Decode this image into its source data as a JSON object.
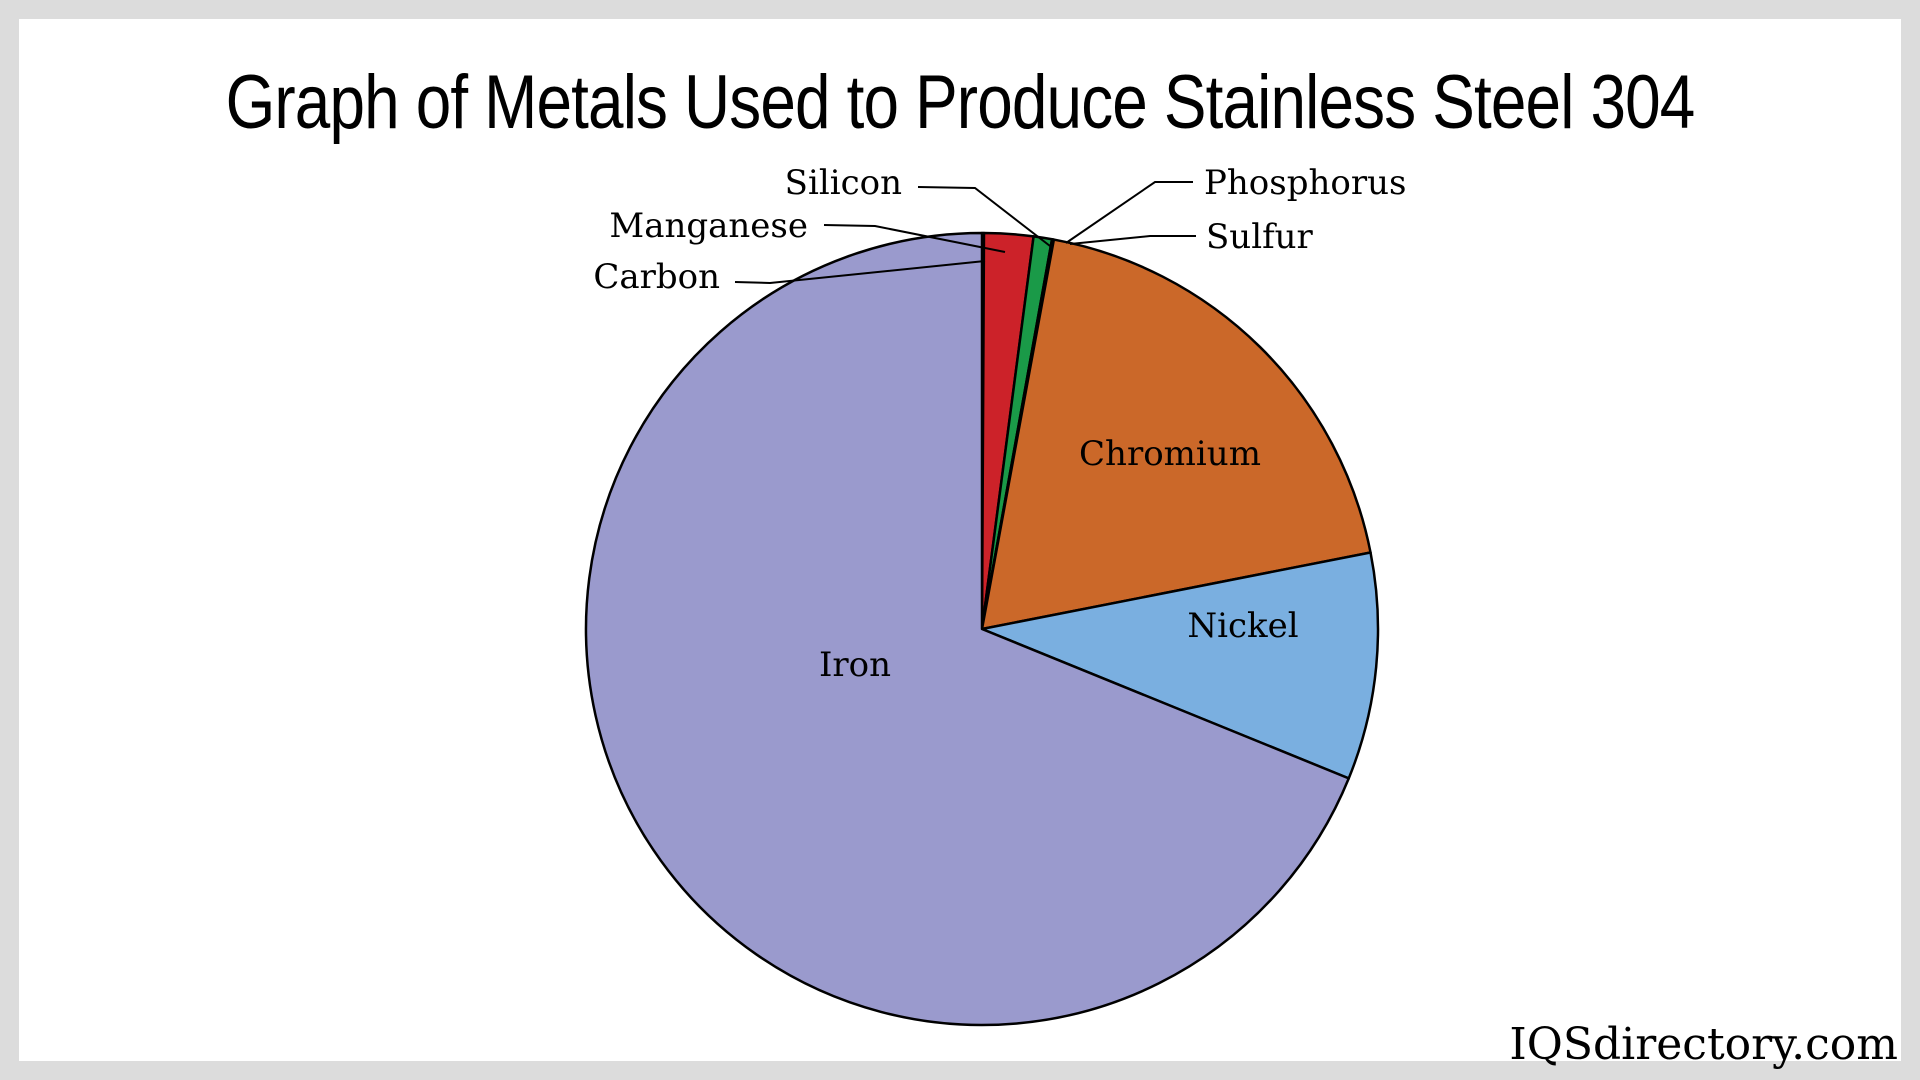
{
  "header": {
    "title": "Graph of Metals Used to Produce Stainless Steel 304"
  },
  "watermark": {
    "text": "IQSdirectory.com"
  },
  "chart_data": {
    "type": "pie",
    "title": "Graph of Metals Used to Produce Stainless Steel 304",
    "start_angle_deg": 0,
    "direction": "clockwise",
    "slices": [
      {
        "label": "Carbon",
        "value": 0.08,
        "color": "#cc2229",
        "label_position": "outside"
      },
      {
        "label": "Manganese",
        "value": 2.0,
        "color": "#cc2229",
        "label_position": "outside"
      },
      {
        "label": "Silicon",
        "value": 0.75,
        "color": "#1a9a48",
        "label_position": "outside"
      },
      {
        "label": "Phosphorus",
        "value": 0.045,
        "color": "#1a9a48",
        "label_position": "outside"
      },
      {
        "label": "Sulfur",
        "value": 0.03,
        "color": "#1a9a48",
        "label_position": "outside"
      },
      {
        "label": "Chromium",
        "value": 19.0,
        "color": "#cb6829",
        "label_position": "inside"
      },
      {
        "label": "Nickel",
        "value": 9.25,
        "color": "#7aafe0",
        "label_position": "inside"
      },
      {
        "label": "Iron",
        "value": 68.845,
        "color": "#9a9acd",
        "label_position": "inside"
      }
    ]
  }
}
